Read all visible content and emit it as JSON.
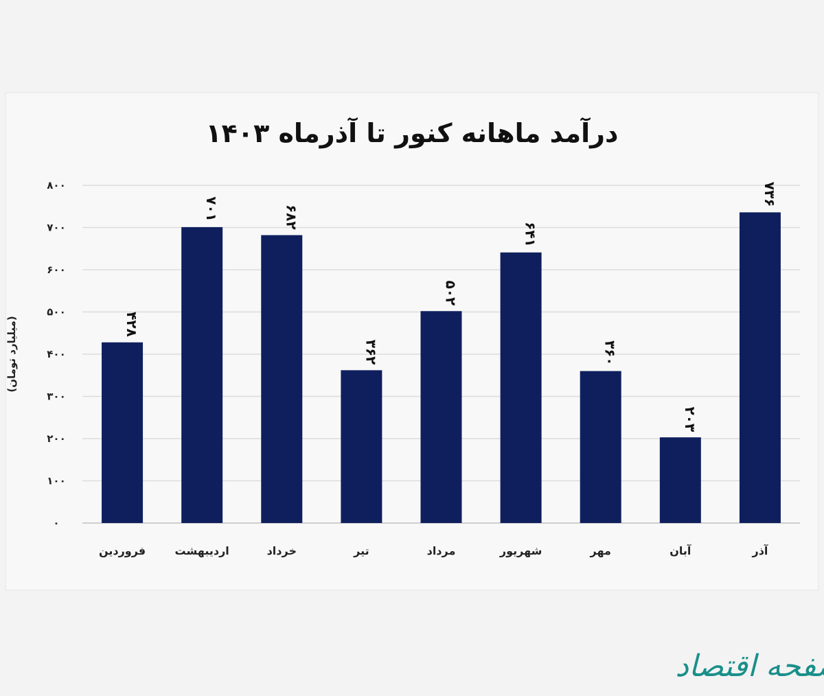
{
  "chart_data": {
    "type": "bar",
    "title": "درآمد ماهانه کنور تا آذرماه ۱۴۰۳",
    "ylabel": "(میلیارد تومان)",
    "xlabel": "",
    "categories": [
      "فروردین",
      "اردیبهشت",
      "خرداد",
      "تیر",
      "مرداد",
      "شهریور",
      "مهر",
      "آبان",
      "آذر"
    ],
    "values": [
      428,
      701,
      682,
      362,
      502,
      641,
      360,
      203,
      736
    ],
    "data_labels": [
      "۴۲۸",
      "۷۰۱",
      "۶۸۲",
      "۳۶۲",
      "۵۰۲",
      "۶۴۱",
      "۳۶۰",
      "۲۰۳",
      "۷۳۶"
    ],
    "ylim": [
      0,
      800
    ],
    "yticks": [
      0,
      100,
      200,
      300,
      400,
      500,
      600,
      700,
      800
    ],
    "ytick_labels": [
      "۰",
      "۱۰۰",
      "۲۰۰",
      "۳۰۰",
      "۴۰۰",
      "۵۰۰",
      "۶۰۰",
      "۷۰۰",
      "۸۰۰"
    ],
    "grid": true,
    "bar_color": "#0f1f5e",
    "legend": "none"
  },
  "watermark": "صفحه اقتصاد",
  "watermark_color": "#1a8f8a"
}
